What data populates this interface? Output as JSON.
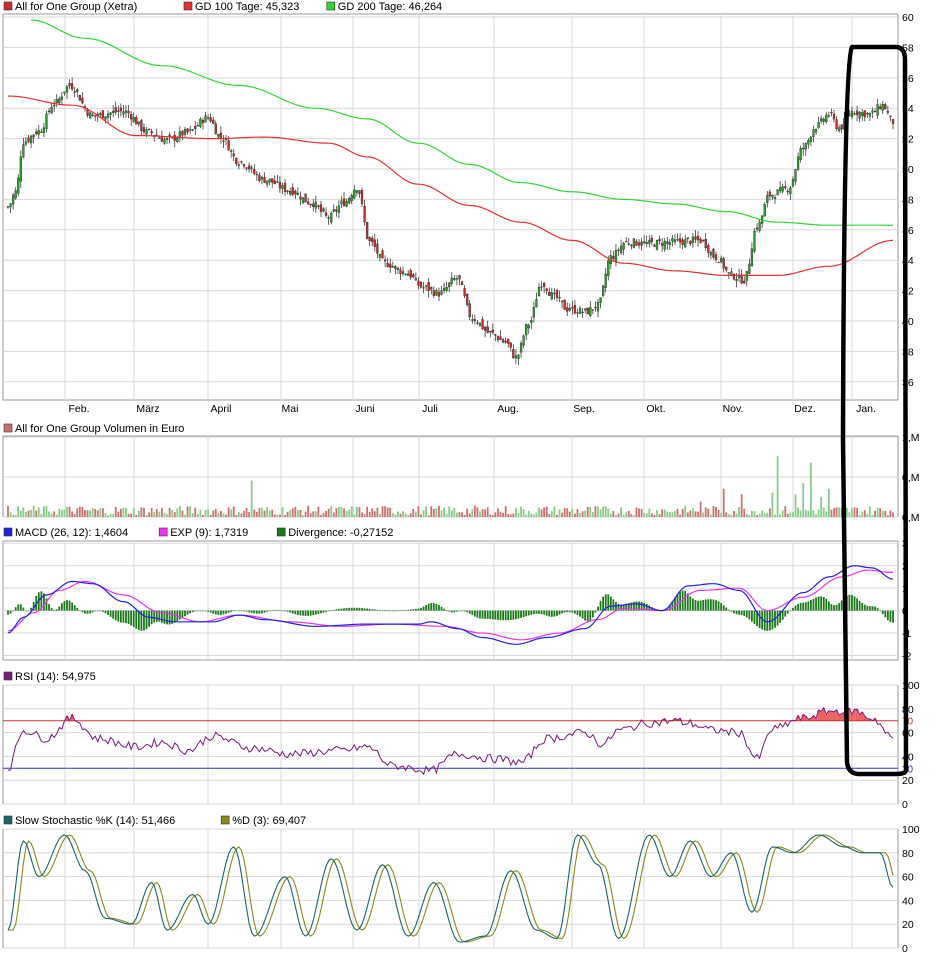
{
  "colors": {
    "grid": "#d9d9d9",
    "axis": "#9a9a9a",
    "gd100": "#e53030",
    "gd200": "#33d633",
    "candle_up": "#2e9e2e",
    "candle_down": "#c82d2d",
    "vol_up": "#88cc88",
    "vol_down": "#cc7070",
    "macd": "#2222dd",
    "exp": "#ee33ee",
    "divergence": "#1a7a1a",
    "rsi": "#7a1a7a",
    "rsi_upper": "#d23232",
    "rsi_lower": "#3333cc",
    "stoch_k": "#1a6666",
    "stoch_d": "#8a8a1a",
    "annotation": "#000000"
  },
  "chart_data": [
    {
      "type": "candlestick",
      "id": "price",
      "legend": [
        {
          "label": "All for One Group (Xetra)",
          "color": "#c82d2d"
        },
        {
          "label": "GD 100 Tage: 45,323",
          "color": "#e53030"
        },
        {
          "label": "GD 200 Tage: 46,264",
          "color": "#33d633"
        }
      ],
      "x_ticks": [
        "Feb.",
        "März",
        "April",
        "Mai",
        "Juni",
        "Juli",
        "Aug.",
        "Sep.",
        "Okt.",
        "Nov.",
        "Dez.",
        "Jan."
      ],
      "y_ticks": [
        "60",
        "58",
        "56",
        "54",
        "52",
        "50",
        "48",
        "46",
        "44",
        "42",
        "40",
        "38",
        "36"
      ],
      "ylim": [
        34.8,
        60.2
      ],
      "close_anchors": [
        [
          0,
          47.5
        ],
        [
          3,
          48.5
        ],
        [
          6,
          51.8
        ],
        [
          12,
          52.5
        ],
        [
          18,
          54.3
        ],
        [
          24,
          55.5
        ],
        [
          33,
          53.5
        ],
        [
          45,
          53.8
        ],
        [
          55,
          52.4
        ],
        [
          62,
          51.9
        ],
        [
          70,
          52.4
        ],
        [
          78,
          53.4
        ],
        [
          83,
          52.1
        ],
        [
          90,
          50.5
        ],
        [
          100,
          49.3
        ],
        [
          110,
          48.6
        ],
        [
          118,
          47.8
        ],
        [
          125,
          46.8
        ],
        [
          131,
          47.8
        ],
        [
          136,
          48.8
        ],
        [
          141,
          45.2
        ],
        [
          147,
          43.8
        ],
        [
          155,
          43.2
        ],
        [
          162,
          42.2
        ],
        [
          168,
          41.8
        ],
        [
          175,
          42.8
        ],
        [
          181,
          40.2
        ],
        [
          188,
          39.2
        ],
        [
          194,
          38.6
        ],
        [
          198,
          37.6
        ],
        [
          203,
          39.8
        ],
        [
          208,
          42.5
        ],
        [
          213,
          41.6
        ],
        [
          218,
          40.8
        ],
        [
          225,
          40.6
        ],
        [
          230,
          41.0
        ],
        [
          235,
          44.2
        ],
        [
          241,
          45.2
        ],
        [
          250,
          45.1
        ],
        [
          260,
          45.2
        ],
        [
          270,
          45.3
        ],
        [
          276,
          44.2
        ],
        [
          282,
          43.0
        ],
        [
          287,
          42.7
        ],
        [
          292,
          46.2
        ],
        [
          297,
          48.3
        ],
        [
          304,
          48.7
        ],
        [
          310,
          51.4
        ],
        [
          315,
          52.8
        ],
        [
          320,
          53.6
        ],
        [
          324,
          52.7
        ],
        [
          329,
          53.8
        ],
        [
          336,
          53.6
        ],
        [
          341,
          54.2
        ],
        [
          345,
          53.1
        ]
      ],
      "series": [
        {
          "name": "GD 100 Tage",
          "anchors": [
            [
              0,
              54.8
            ],
            [
              25,
              54.2
            ],
            [
              50,
              52.2
            ],
            [
              80,
              52.0
            ],
            [
              100,
              52.1
            ],
            [
              125,
              51.7
            ],
            [
              140,
              50.8
            ],
            [
              160,
              49.0
            ],
            [
              180,
              47.6
            ],
            [
              200,
              46.5
            ],
            [
              220,
              45.3
            ],
            [
              240,
              43.8
            ],
            [
              260,
              43.3
            ],
            [
              280,
              43.0
            ],
            [
              300,
              43.0
            ],
            [
              320,
              43.6
            ],
            [
              345,
              45.3
            ]
          ]
        },
        {
          "name": "GD 200 Tage",
          "anchors": [
            [
              9,
              59.8
            ],
            [
              30,
              58.6
            ],
            [
              60,
              56.8
            ],
            [
              90,
              55.5
            ],
            [
              120,
              54.0
            ],
            [
              140,
              53.3
            ],
            [
              160,
              51.7
            ],
            [
              180,
              50.3
            ],
            [
              200,
              49.1
            ],
            [
              220,
              48.5
            ],
            [
              240,
              48.0
            ],
            [
              260,
              47.7
            ],
            [
              280,
              47.2
            ],
            [
              300,
              46.5
            ],
            [
              320,
              46.3
            ],
            [
              345,
              46.3
            ]
          ]
        }
      ]
    },
    {
      "type": "bar",
      "id": "volume",
      "legend": [
        {
          "label": "All for One Group Volumen in Euro",
          "color": "#cc7070"
        }
      ],
      "y_ticks": [
        "1,M",
        "0,M",
        "0,M"
      ],
      "spikes": [
        [
          95,
          0.45
        ],
        [
          270,
          0.19
        ],
        [
          279,
          0.35
        ],
        [
          286,
          0.28
        ],
        [
          298,
          0.3
        ],
        [
          300,
          0.75
        ],
        [
          307,
          0.28
        ],
        [
          310,
          0.42
        ],
        [
          313,
          0.67
        ],
        [
          317,
          0.25
        ],
        [
          320,
          0.35
        ]
      ]
    },
    {
      "type": "line",
      "id": "macd",
      "legend": [
        {
          "label": "MACD (26, 12): 1,4604",
          "color": "#2222dd"
        },
        {
          "label": "EXP (9): 1,7319",
          "color": "#ee33ee"
        },
        {
          "label": "Divergence: -0,27152",
          "color": "#1a7a1a"
        }
      ],
      "y_ticks": [
        "3",
        "2",
        "1",
        "0",
        "-1",
        "-2"
      ],
      "ylim": [
        -2.2,
        3.1
      ],
      "series": [
        {
          "name": "MACD (26, 12)",
          "anchors": [
            [
              0,
              -1.0
            ],
            [
              6,
              -0.3
            ],
            [
              15,
              0.7
            ],
            [
              25,
              1.3
            ],
            [
              33,
              1.2
            ],
            [
              45,
              0.4
            ],
            [
              55,
              -0.3
            ],
            [
              65,
              -0.5
            ],
            [
              80,
              -0.5
            ],
            [
              90,
              -0.2
            ],
            [
              100,
              -0.4
            ],
            [
              120,
              -0.7
            ],
            [
              140,
              -0.6
            ],
            [
              160,
              -0.6
            ],
            [
              165,
              -0.5
            ],
            [
              175,
              -0.8
            ],
            [
              185,
              -1.2
            ],
            [
              198,
              -1.5
            ],
            [
              210,
              -1.2
            ],
            [
              225,
              -0.8
            ],
            [
              235,
              0.2
            ],
            [
              245,
              0.3
            ],
            [
              255,
              0.0
            ],
            [
              265,
              1.1
            ],
            [
              275,
              1.2
            ],
            [
              285,
              0.9
            ],
            [
              296,
              -0.5
            ],
            [
              310,
              0.8
            ],
            [
              320,
              1.5
            ],
            [
              330,
              2.0
            ],
            [
              337,
              1.9
            ],
            [
              345,
              1.4
            ]
          ]
        },
        {
          "name": "EXP (9)",
          "anchors": [
            [
              0,
              -0.9
            ],
            [
              10,
              -0.1
            ],
            [
              20,
              0.9
            ],
            [
              30,
              1.3
            ],
            [
              45,
              0.7
            ],
            [
              60,
              -0.1
            ],
            [
              75,
              -0.5
            ],
            [
              90,
              -0.2
            ],
            [
              110,
              -0.5
            ],
            [
              130,
              -0.7
            ],
            [
              150,
              -0.6
            ],
            [
              170,
              -0.7
            ],
            [
              185,
              -1.0
            ],
            [
              200,
              -1.3
            ],
            [
              215,
              -1.0
            ],
            [
              230,
              -0.4
            ],
            [
              240,
              0.1
            ],
            [
              255,
              0.0
            ],
            [
              270,
              0.9
            ],
            [
              285,
              1.0
            ],
            [
              296,
              0.0
            ],
            [
              310,
              0.6
            ],
            [
              325,
              1.5
            ],
            [
              335,
              1.8
            ],
            [
              345,
              1.7
            ]
          ]
        }
      ]
    },
    {
      "type": "line",
      "id": "rsi",
      "legend": [
        {
          "label": "RSI (14): 54,975",
          "color": "#7a1a7a"
        }
      ],
      "y_ticks": [
        "100",
        "80",
        "60",
        "40",
        "20",
        "0"
      ],
      "ylim": [
        0,
        100
      ],
      "levels": [
        70,
        30
      ],
      "level_labels": [
        "70",
        "30"
      ],
      "anchors": [
        [
          0,
          30
        ],
        [
          6,
          62
        ],
        [
          15,
          55
        ],
        [
          25,
          72
        ],
        [
          35,
          55
        ],
        [
          50,
          48
        ],
        [
          60,
          52
        ],
        [
          70,
          45
        ],
        [
          80,
          57
        ],
        [
          95,
          47
        ],
        [
          110,
          42
        ],
        [
          130,
          45
        ],
        [
          140,
          48
        ],
        [
          150,
          32
        ],
        [
          165,
          28
        ],
        [
          175,
          42
        ],
        [
          190,
          38
        ],
        [
          200,
          35
        ],
        [
          210,
          55
        ],
        [
          225,
          60
        ],
        [
          232,
          50
        ],
        [
          238,
          62
        ],
        [
          250,
          68
        ],
        [
          260,
          70
        ],
        [
          265,
          68
        ],
        [
          275,
          62
        ],
        [
          285,
          60
        ],
        [
          292,
          38
        ],
        [
          298,
          63
        ],
        [
          310,
          72
        ],
        [
          320,
          78
        ],
        [
          330,
          78
        ],
        [
          337,
          72
        ],
        [
          345,
          55
        ]
      ]
    },
    {
      "type": "line",
      "id": "stochastic",
      "legend": [
        {
          "label": "Slow Stochastic %K (14): 51,466",
          "color": "#1a6666"
        },
        {
          "label": "%D (3): 69,407",
          "color": "#8a8a1a"
        }
      ],
      "y_ticks": [
        "100",
        "80",
        "60",
        "40",
        "20",
        "0"
      ],
      "ylim": [
        0,
        100
      ],
      "k_anchors": [
        [
          0,
          15
        ],
        [
          6,
          90
        ],
        [
          12,
          60
        ],
        [
          22,
          95
        ],
        [
          30,
          65
        ],
        [
          38,
          25
        ],
        [
          48,
          20
        ],
        [
          56,
          55
        ],
        [
          62,
          15
        ],
        [
          72,
          45
        ],
        [
          78,
          20
        ],
        [
          88,
          85
        ],
        [
          96,
          10
        ],
        [
          108,
          60
        ],
        [
          116,
          10
        ],
        [
          126,
          75
        ],
        [
          136,
          15
        ],
        [
          146,
          70
        ],
        [
          156,
          10
        ],
        [
          166,
          55
        ],
        [
          176,
          5
        ],
        [
          186,
          10
        ],
        [
          196,
          65
        ],
        [
          206,
          15
        ],
        [
          214,
          8
        ],
        [
          222,
          95
        ],
        [
          230,
          70
        ],
        [
          238,
          8
        ],
        [
          250,
          95
        ],
        [
          258,
          60
        ],
        [
          266,
          90
        ],
        [
          274,
          60
        ],
        [
          282,
          80
        ],
        [
          290,
          30
        ],
        [
          298,
          85
        ],
        [
          306,
          80
        ],
        [
          316,
          95
        ],
        [
          326,
          85
        ],
        [
          333,
          80
        ],
        [
          340,
          80
        ],
        [
          345,
          51
        ]
      ],
      "d_lag": 2
    }
  ]
}
